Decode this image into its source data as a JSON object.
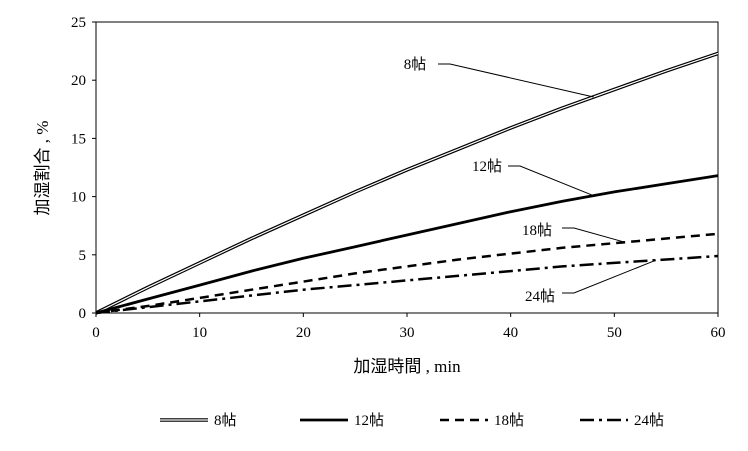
{
  "chart_data": {
    "type": "line",
    "xlabel": "加湿時間 , min",
    "ylabel": "加湿割合 , %",
    "xlim": [
      0,
      60
    ],
    "ylim": [
      0,
      25
    ],
    "x_ticks": [
      "0",
      "10",
      "20",
      "30",
      "40",
      "50",
      "60"
    ],
    "y_ticks": [
      "0",
      "5",
      "10",
      "15",
      "20",
      "25"
    ],
    "grid": false,
    "legend_position": "bottom",
    "x": [
      0,
      5,
      10,
      15,
      20,
      25,
      30,
      35,
      40,
      45,
      50,
      55,
      60
    ],
    "series": [
      {
        "name": "8帖",
        "style": "double",
        "values": [
          0,
          2.2,
          4.3,
          6.4,
          8.4,
          10.4,
          12.3,
          14.1,
          15.9,
          17.6,
          19.2,
          20.8,
          22.3
        ]
      },
      {
        "name": "12帖",
        "style": "solid",
        "values": [
          0,
          1.2,
          2.4,
          3.6,
          4.7,
          5.7,
          6.7,
          7.7,
          8.7,
          9.6,
          10.4,
          11.1,
          11.8
        ]
      },
      {
        "name": "18帖",
        "style": "dashed",
        "values": [
          0,
          0.6,
          1.3,
          2.0,
          2.7,
          3.4,
          4.0,
          4.6,
          5.1,
          5.6,
          6.0,
          6.4,
          6.8
        ]
      },
      {
        "name": "24帖",
        "style": "dashdot",
        "values": [
          0,
          0.5,
          1.0,
          1.5,
          2.0,
          2.4,
          2.8,
          3.2,
          3.6,
          4.0,
          4.3,
          4.6,
          4.9
        ]
      }
    ],
    "annotations": [
      {
        "text": "8帖",
        "series": "8帖",
        "at_x": 48
      },
      {
        "text": "12帖",
        "series": "12帖",
        "at_x": 48
      },
      {
        "text": "18帖",
        "series": "18帖",
        "at_x": 51
      },
      {
        "text": "24帖",
        "series": "24帖",
        "at_x": 54
      }
    ],
    "colors": {
      "line": "#000000",
      "axis": "#000000",
      "background": "#ffffff"
    }
  }
}
